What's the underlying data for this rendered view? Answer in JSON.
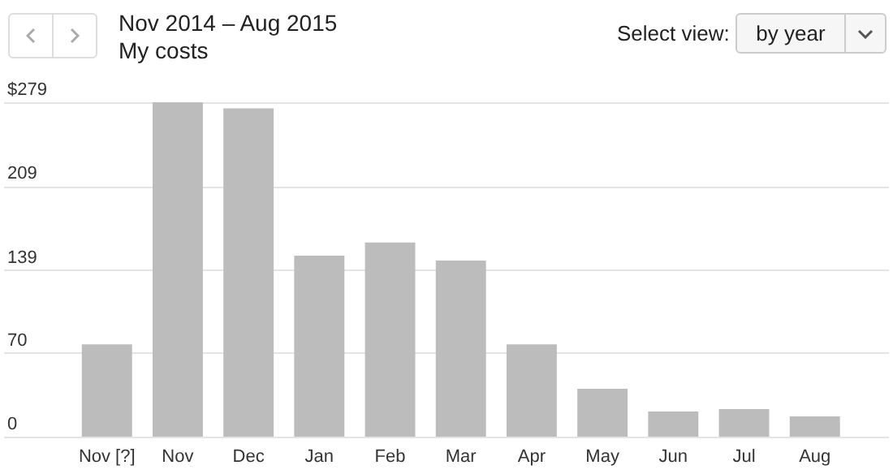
{
  "chart_data": {
    "type": "bar",
    "title": "Nov 2014 – Aug 2015",
    "subtitle": "My costs",
    "annotations": [
      "Select view:",
      "by year"
    ],
    "categories": [
      "Nov [?]",
      "Nov",
      "Dec",
      "Jan",
      "Feb",
      "Mar",
      "Apr",
      "May",
      "Jun",
      "Jul",
      "Aug"
    ],
    "values": [
      77,
      279,
      274,
      151,
      162,
      147,
      77,
      40,
      21,
      23,
      17
    ],
    "color": "#bcbcbc",
    "ylim": [
      0,
      279
    ],
    "yticks": [
      0,
      70,
      139,
      209,
      {
        "value": 279,
        "label": "$279"
      }
    ],
    "grid": true
  }
}
